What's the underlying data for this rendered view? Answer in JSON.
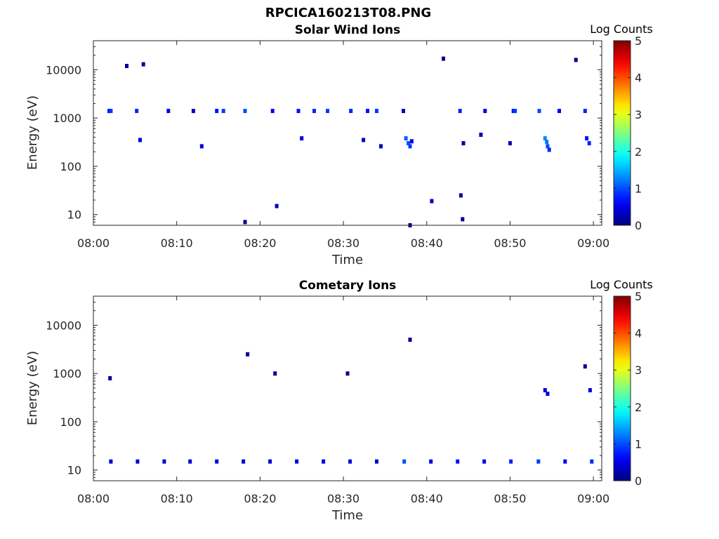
{
  "figure": {
    "title": "RPCICA160213T08.PNG"
  },
  "chart_data": [
    {
      "type": "heatmap",
      "title": "Solar Wind Ions",
      "xlabel": "Time",
      "ylabel": "Energy (eV)",
      "xlim": [
        "08:00",
        "09:01"
      ],
      "ylim": [
        6,
        40000
      ],
      "yscale": "log",
      "xticks": [
        "08:00",
        "08:10",
        "08:20",
        "08:30",
        "08:40",
        "08:50",
        "09:00"
      ],
      "yticks": [
        "10",
        "100",
        "1000",
        "10000"
      ],
      "colorbar": {
        "label": "Log Counts",
        "min": 0,
        "max": 5,
        "ticks": [
          "0",
          "1",
          "2",
          "3",
          "4",
          "5"
        ],
        "colormap": "jet"
      },
      "grid": false,
      "points": [
        [
          1.9,
          1400,
          0.6
        ],
        [
          2.1,
          1400,
          0.9
        ],
        [
          5.2,
          1400,
          0.8
        ],
        [
          9.0,
          1400,
          0.5
        ],
        [
          12.0,
          1400,
          0.3
        ],
        [
          14.8,
          1400,
          0.7
        ],
        [
          15.6,
          1400,
          0.9
        ],
        [
          18.2,
          1400,
          1.0
        ],
        [
          21.5,
          1400,
          0.6
        ],
        [
          24.6,
          1400,
          0.7
        ],
        [
          26.5,
          1400,
          0.8
        ],
        [
          28.1,
          1400,
          0.9
        ],
        [
          30.9,
          1400,
          0.8
        ],
        [
          32.9,
          1400,
          0.7
        ],
        [
          34.0,
          1400,
          0.9
        ],
        [
          37.2,
          1400,
          0.3
        ],
        [
          44.0,
          1400,
          0.8
        ],
        [
          47.0,
          1400,
          0.5
        ],
        [
          50.4,
          1400,
          0.7
        ],
        [
          50.6,
          1400,
          0.9
        ],
        [
          53.5,
          1400,
          1.0
        ],
        [
          55.9,
          1400,
          0.6
        ],
        [
          59.0,
          1400,
          0.8
        ],
        [
          37.5,
          380,
          1.1
        ],
        [
          37.8,
          300,
          1.0
        ],
        [
          38.0,
          260,
          0.9
        ],
        [
          38.2,
          330,
          0.6
        ],
        [
          54.2,
          380,
          1.3
        ],
        [
          54.4,
          320,
          1.2
        ],
        [
          54.5,
          260,
          1.0
        ],
        [
          54.7,
          220,
          0.8
        ],
        [
          59.2,
          380,
          0.7
        ],
        [
          59.5,
          300,
          0.8
        ],
        [
          5.6,
          350,
          0.4
        ],
        [
          13.0,
          260,
          0.4
        ],
        [
          25.0,
          380,
          0.5
        ],
        [
          32.4,
          350,
          0.3
        ],
        [
          34.5,
          260,
          0.3
        ],
        [
          44.4,
          300,
          0.2
        ],
        [
          46.5,
          450,
          0.3
        ],
        [
          50.0,
          300,
          0.3
        ],
        [
          38.0,
          6,
          0.1
        ],
        [
          44.3,
          8,
          0.2
        ],
        [
          22.0,
          15,
          0.3
        ],
        [
          40.6,
          19,
          0.3
        ],
        [
          44.1,
          25,
          0.2
        ],
        [
          18.2,
          7,
          0.1
        ],
        [
          4.0,
          12000,
          0.1
        ],
        [
          6.0,
          13000,
          0.1
        ],
        [
          42.0,
          17000,
          0.1
        ],
        [
          57.9,
          16000,
          0.1
        ]
      ]
    },
    {
      "type": "heatmap",
      "title": "Cometary Ions",
      "xlabel": "Time",
      "ylabel": "Energy (eV)",
      "xlim": [
        "08:00",
        "09:01"
      ],
      "ylim": [
        6,
        40000
      ],
      "yscale": "log",
      "xticks": [
        "08:00",
        "08:10",
        "08:20",
        "08:30",
        "08:40",
        "08:50",
        "09:00"
      ],
      "yticks": [
        "10",
        "100",
        "1000",
        "10000"
      ],
      "colorbar": {
        "label": "Log Counts",
        "min": 0,
        "max": 5,
        "ticks": [
          "0",
          "1",
          "2",
          "3",
          "4",
          "5"
        ],
        "colormap": "jet"
      },
      "grid": false,
      "points": [
        [
          2.1,
          15,
          0.4
        ],
        [
          5.3,
          15,
          0.4
        ],
        [
          8.5,
          15,
          0.4
        ],
        [
          11.6,
          15,
          0.4
        ],
        [
          14.8,
          15,
          0.5
        ],
        [
          18.0,
          15,
          0.4
        ],
        [
          21.2,
          15,
          0.4
        ],
        [
          24.4,
          15,
          0.5
        ],
        [
          27.6,
          15,
          0.5
        ],
        [
          30.8,
          15,
          0.5
        ],
        [
          34.0,
          15,
          0.4
        ],
        [
          37.3,
          15,
          1.0
        ],
        [
          40.5,
          15,
          0.5
        ],
        [
          43.7,
          15,
          0.7
        ],
        [
          46.9,
          15,
          0.6
        ],
        [
          50.1,
          15,
          0.8
        ],
        [
          53.4,
          15,
          0.9
        ],
        [
          56.6,
          15,
          0.6
        ],
        [
          59.8,
          15,
          0.8
        ],
        [
          54.2,
          450,
          0.4
        ],
        [
          54.5,
          380,
          0.5
        ],
        [
          59.6,
          450,
          0.4
        ],
        [
          38.0,
          5000,
          0.1
        ],
        [
          18.5,
          2500,
          0.1
        ],
        [
          30.5,
          1000,
          0.1
        ],
        [
          21.8,
          1000,
          0.1
        ],
        [
          59.0,
          1400,
          0.1
        ],
        [
          2.0,
          800,
          0.1
        ]
      ]
    }
  ]
}
